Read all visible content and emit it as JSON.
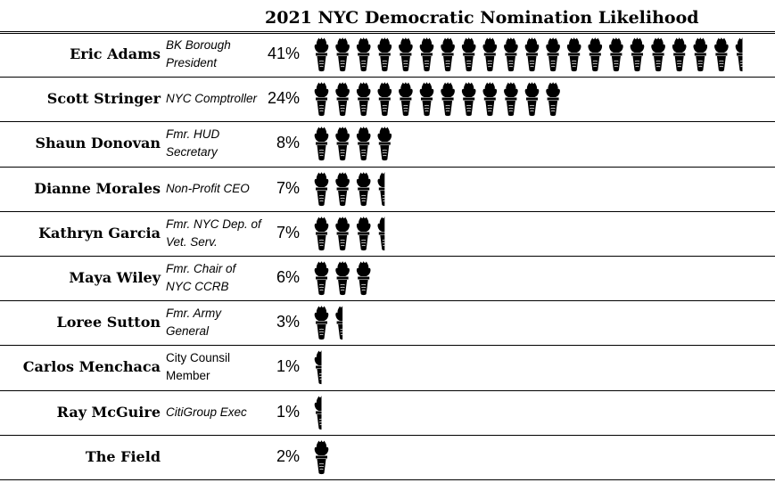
{
  "chart_data": {
    "type": "pictograph",
    "title": "2021 NYC Democratic Nomination Likelihood",
    "icon": "torch-icon",
    "unit_percent_per_icon": 2,
    "rows": [
      {
        "name": "Eric Adams",
        "role": "BK Borough President",
        "role_italic": true,
        "value": 41,
        "label": "41%"
      },
      {
        "name": "Scott Stringer",
        "role": "NYC Comptroller",
        "role_italic": true,
        "value": 24,
        "label": "24%"
      },
      {
        "name": "Shaun Donovan",
        "role": "Fmr. HUD Secretary",
        "role_italic": true,
        "value": 8,
        "label": "8%"
      },
      {
        "name": "Dianne Morales",
        "role": "Non-Profit CEO",
        "role_italic": true,
        "value": 7,
        "label": "7%"
      },
      {
        "name": "Kathryn Garcia",
        "role": "Fmr. NYC Dep. of Vet. Serv.",
        "role_italic": true,
        "value": 7,
        "label": "7%"
      },
      {
        "name": "Maya Wiley",
        "role": "Fmr. Chair of NYC CCRB",
        "role_italic": true,
        "value": 6,
        "label": "6%"
      },
      {
        "name": "Loree Sutton",
        "role": "Fmr. Army General",
        "role_italic": true,
        "value": 3,
        "label": "3%"
      },
      {
        "name": "Carlos Menchaca",
        "role": "City Counsil Member",
        "role_italic": false,
        "value": 1,
        "label": "1%"
      },
      {
        "name": "Ray McGuire",
        "role": "CitiGroup Exec",
        "role_italic": true,
        "value": 1,
        "label": "1%"
      },
      {
        "name": "The Field",
        "role": "",
        "role_italic": true,
        "value": 2,
        "label": "2%"
      }
    ]
  }
}
